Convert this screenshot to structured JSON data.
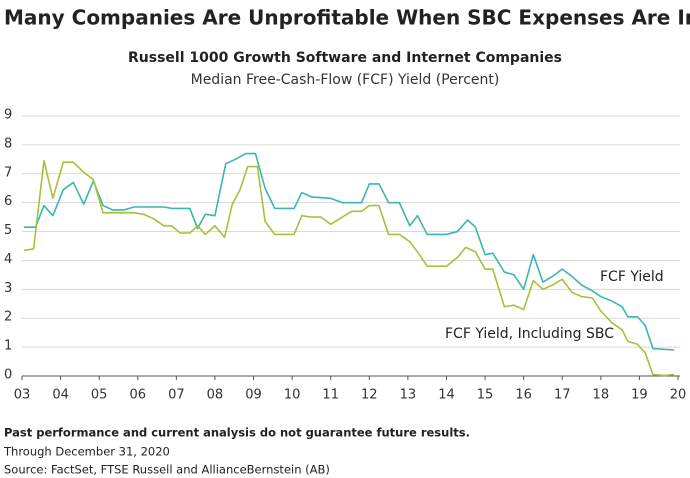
{
  "chart_data": {
    "type": "line",
    "title": "Many Companies Are Unprofitable When SBC Expenses Are Included",
    "subtitle": "Russell 1000 Growth Software and Internet Companies",
    "ylabel": "Median Free-Cash-Flow (FCF) Yield (Percent)",
    "disclaimer": "Past performance and current analysis do not guarantee future results.",
    "date_note": "Through December 31, 2020",
    "source": "Source: FactSet, FTSE Russell and AllianceBernstein (AB)",
    "xlim": [
      2003,
      2020
    ],
    "xticks": [
      {
        "value": 2003,
        "label": "03"
      },
      {
        "value": 2004,
        "label": "04"
      },
      {
        "value": 2005,
        "label": "05"
      },
      {
        "value": 2006,
        "label": "06"
      },
      {
        "value": 2007,
        "label": "07"
      },
      {
        "value": 2008,
        "label": "08"
      },
      {
        "value": 2009,
        "label": "09"
      },
      {
        "value": 2010,
        "label": "10"
      },
      {
        "value": 2011,
        "label": "11"
      },
      {
        "value": 2012,
        "label": "12"
      },
      {
        "value": 2013,
        "label": "13"
      },
      {
        "value": 2014,
        "label": "14"
      },
      {
        "value": 2015,
        "label": "15"
      },
      {
        "value": 2016,
        "label": "16"
      },
      {
        "value": 2017,
        "label": "17"
      },
      {
        "value": 2018,
        "label": "18"
      },
      {
        "value": 2019,
        "label": "19"
      },
      {
        "value": 2020,
        "label": "20"
      }
    ],
    "ylim": [
      0,
      9
    ],
    "yticks": [
      0,
      1,
      2,
      3,
      4,
      5,
      6,
      7,
      8,
      9
    ],
    "grid": true,
    "series": [
      {
        "name": "FCF Yield",
        "color": "#3bb7ae",
        "x": [
          2003.05,
          2003.35,
          2003.57,
          2003.8,
          2004.07,
          2004.33,
          2004.6,
          2004.85,
          2005.1,
          2005.35,
          2005.65,
          2005.9,
          2006.15,
          2006.68,
          2006.88,
          2007.35,
          2007.55,
          2007.75,
          2008.0,
          2008.28,
          2008.53,
          2008.8,
          2009.05,
          2009.3,
          2009.55,
          2010.05,
          2010.25,
          2010.5,
          2011.0,
          2011.3,
          2011.8,
          2012.0,
          2012.25,
          2012.5,
          2012.78,
          2013.05,
          2013.25,
          2013.5,
          2014.0,
          2014.28,
          2014.55,
          2014.75,
          2015.0,
          2015.2,
          2015.5,
          2015.75,
          2016.0,
          2016.25,
          2016.5,
          2016.75,
          2017.0,
          2017.25,
          2017.5,
          2017.78,
          2018.0,
          2018.28,
          2018.55,
          2018.7,
          2018.95,
          2019.15,
          2019.35,
          2019.9
        ],
        "values": [
          5.15,
          5.15,
          5.9,
          5.55,
          6.45,
          6.7,
          5.95,
          6.75,
          5.9,
          5.75,
          5.75,
          5.85,
          5.85,
          5.85,
          5.8,
          5.8,
          5.1,
          5.6,
          5.55,
          7.35,
          7.5,
          7.7,
          7.7,
          6.5,
          5.8,
          5.8,
          6.35,
          6.2,
          6.15,
          6.0,
          6.0,
          6.65,
          6.65,
          6.0,
          6.0,
          5.2,
          5.55,
          4.9,
          4.9,
          5.0,
          5.4,
          5.15,
          4.2,
          4.25,
          3.6,
          3.5,
          3.0,
          4.2,
          3.25,
          3.45,
          3.7,
          3.45,
          3.15,
          2.95,
          2.75,
          2.6,
          2.4,
          2.05,
          2.05,
          1.75,
          0.95,
          0.9
        ]
      },
      {
        "name": "FCF Yield, Including SBC",
        "color": "#a6c13a",
        "x": [
          2003.05,
          2003.3,
          2003.57,
          2003.8,
          2004.07,
          2004.33,
          2004.6,
          2004.85,
          2005.1,
          2005.9,
          2006.15,
          2006.4,
          2006.68,
          2006.88,
          2007.1,
          2007.35,
          2007.55,
          2007.75,
          2008.0,
          2008.25,
          2008.45,
          2008.65,
          2008.85,
          2009.1,
          2009.3,
          2009.55,
          2010.05,
          2010.25,
          2010.5,
          2010.75,
          2011.0,
          2011.3,
          2011.55,
          2011.8,
          2012.0,
          2012.25,
          2012.5,
          2012.78,
          2013.05,
          2013.3,
          2013.5,
          2014.0,
          2014.28,
          2014.5,
          2014.75,
          2015.0,
          2015.2,
          2015.5,
          2015.75,
          2016.0,
          2016.25,
          2016.5,
          2016.75,
          2017.0,
          2017.25,
          2017.5,
          2017.78,
          2018.0,
          2018.28,
          2018.55,
          2018.7,
          2018.95,
          2019.15,
          2019.35,
          2019.65,
          2019.9
        ],
        "values": [
          4.35,
          4.4,
          7.45,
          6.15,
          7.4,
          7.4,
          7.05,
          6.8,
          5.65,
          5.65,
          5.6,
          5.45,
          5.2,
          5.2,
          4.95,
          4.95,
          5.2,
          4.9,
          5.2,
          4.8,
          5.95,
          6.45,
          7.25,
          7.25,
          5.35,
          4.9,
          4.9,
          5.55,
          5.5,
          5.5,
          5.25,
          5.5,
          5.7,
          5.7,
          5.9,
          5.9,
          4.9,
          4.9,
          4.65,
          4.2,
          3.8,
          3.8,
          4.1,
          4.45,
          4.3,
          3.7,
          3.7,
          2.4,
          2.45,
          2.3,
          3.3,
          3.0,
          3.15,
          3.35,
          2.9,
          2.75,
          2.7,
          2.25,
          1.85,
          1.6,
          1.2,
          1.1,
          0.8,
          0.05,
          0.02,
          0.05
        ]
      }
    ]
  }
}
